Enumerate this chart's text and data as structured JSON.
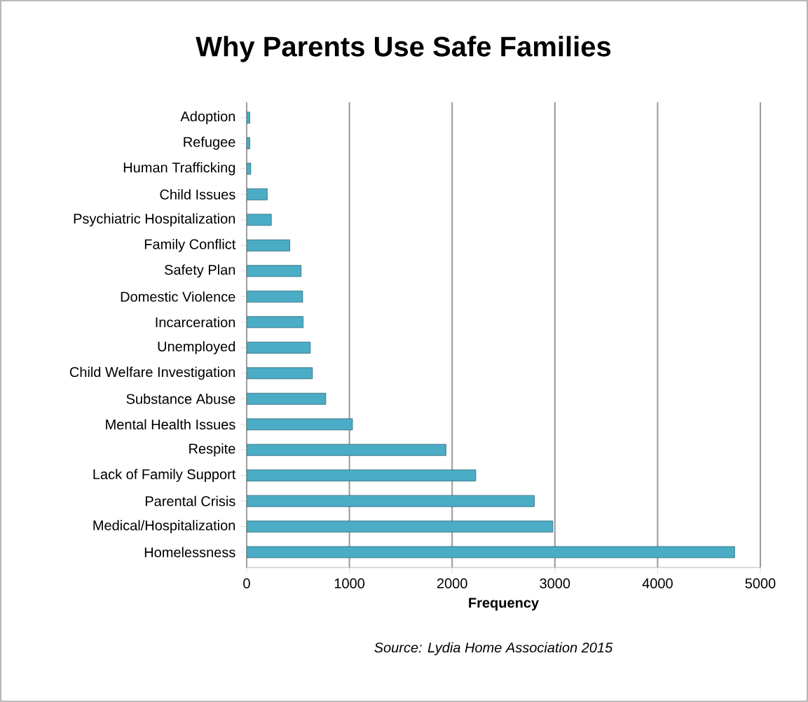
{
  "chart_data": {
    "type": "bar",
    "orientation": "horizontal",
    "title": "Why Parents Use Safe Families",
    "xlabel": "Frequency",
    "categories": [
      "Adoption",
      "Refugee",
      "Human Trafficking",
      "Child Issues",
      "Psychiatric Hospitalization",
      "Family Conflict",
      "Safety Plan",
      "Domestic Violence",
      "Incarceration",
      "Unemployed",
      "Child Welfare Investigation",
      "Substance Abuse",
      "Mental Health Issues",
      "Respite",
      "Lack of Family Support",
      "Parental Crisis",
      "Medical/Hospitalization",
      "Homelessness"
    ],
    "values": [
      30,
      30,
      40,
      200,
      240,
      420,
      530,
      545,
      550,
      620,
      640,
      770,
      1030,
      1940,
      2230,
      2800,
      2980,
      4750
    ],
    "color": "#4bacc6",
    "xlim": [
      0,
      5000
    ],
    "xticks": [
      0,
      1000,
      2000,
      3000,
      4000,
      5000
    ],
    "grid": "x",
    "annotations": [
      "*Source: Lydia Home Association 2015*"
    ]
  }
}
